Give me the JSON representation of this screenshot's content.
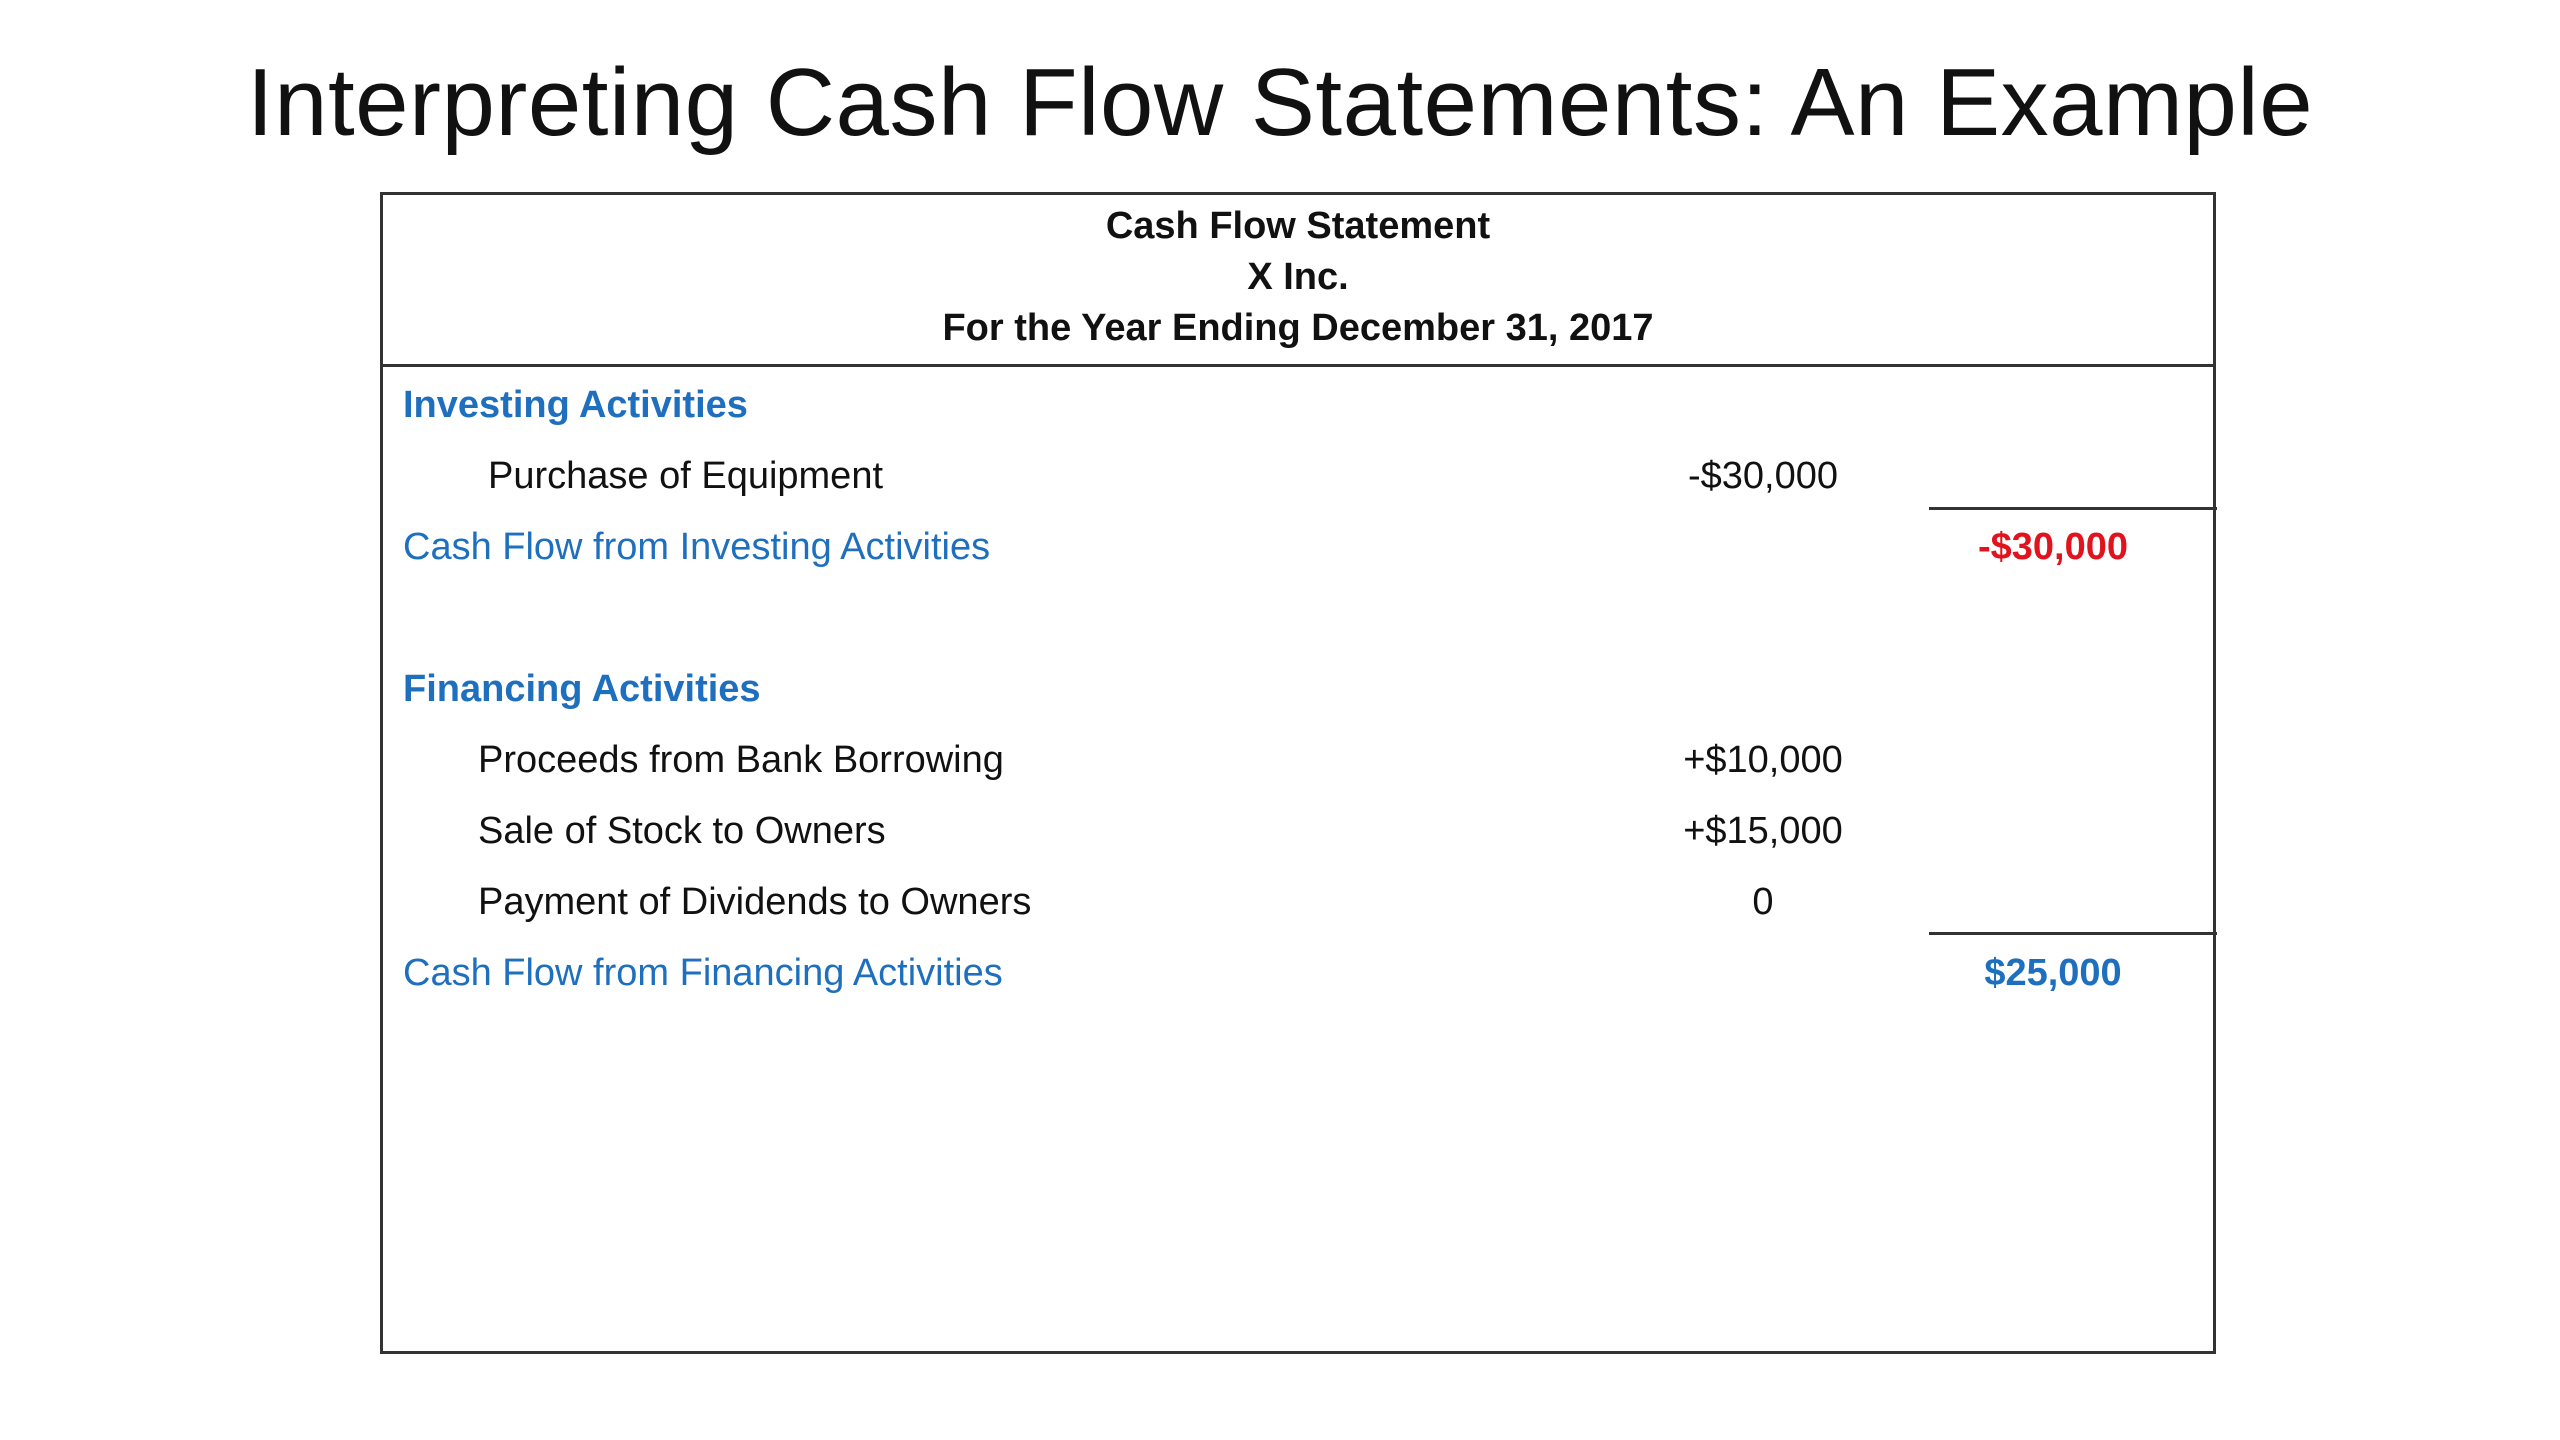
{
  "slide": {
    "title": "Interpreting Cash Flow Statements: An Example"
  },
  "statement": {
    "header": {
      "title": "Cash Flow Statement",
      "company": "X Inc.",
      "period": "For the Year Ending December 31, 2017"
    },
    "investing": {
      "heading": "Investing Activities",
      "items": [
        {
          "label": "Purchase of Equipment",
          "amount": "-$30,000"
        }
      ],
      "total_label": "Cash Flow from Investing Activities",
      "total_amount": "-$30,000"
    },
    "financing": {
      "heading": "Financing Activities",
      "items": [
        {
          "label": "Proceeds from Bank Borrowing",
          "amount": "+$10,000"
        },
        {
          "label": "Sale of Stock to Owners",
          "amount": "+$15,000"
        },
        {
          "label": "Payment of Dividends to Owners",
          "amount": "0"
        }
      ],
      "total_label": "Cash Flow from Financing Activities",
      "total_amount": "$25,000"
    }
  },
  "colors": {
    "section_heading": "#1f6fbf",
    "negative_total": "#e0141e",
    "positive_total": "#1f6fbf",
    "text": "#111111"
  }
}
